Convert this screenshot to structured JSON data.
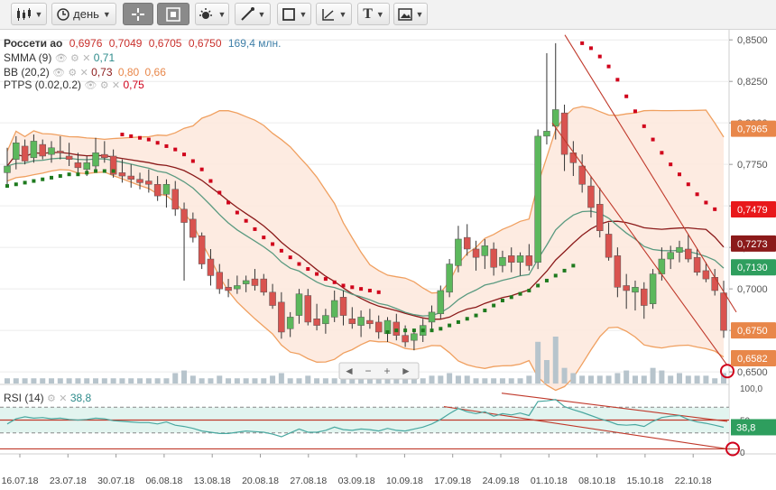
{
  "toolbar": {
    "chart_type_icon": "candlestick-icon",
    "period_label": "день",
    "buttons": [
      "crosshair-icon",
      "chart-area-icon",
      "indicators-icon",
      "draw-line-icon",
      "shapes-icon",
      "fibonacci-icon",
      "text-icon",
      "image-icon"
    ],
    "text_tool_label": "T"
  },
  "legend": {
    "ticker": "Россети ао",
    "open": "0,6976",
    "high": "0,7049",
    "low": "0,6705",
    "close": "0,6750",
    "volume": "169,4 млн.",
    "sma_label": "SMMA (9)",
    "sma_value": "0,71",
    "bb_label": "BB (20,2)",
    "bb_values": [
      "0,73",
      "0,80",
      "0,66"
    ],
    "ptps_label": "PTPS (0.02,0.2)",
    "ptps_value": "0,75",
    "rsi_label": "RSI (14)",
    "rsi_value": "38,8"
  },
  "colors": {
    "up": "#5cb85c",
    "down": "#d9534f",
    "bb_band": "#f0a060",
    "bb_mid": "#8b1a1a",
    "smma": "#5a9a80",
    "sar_above": "#d0021b",
    "sar_below": "#1e7a1e",
    "rsi": "#4aa8a0",
    "trendline": "#c0392b"
  },
  "chart_data": {
    "type": "candlestick",
    "price_axis": {
      "ticks": [
        "0,6500",
        "0,6750",
        "0,7000",
        "0,7250",
        "0,7500",
        "0,7750",
        "0,8000",
        "0,8250",
        "0,8500"
      ],
      "ylim": [
        0.643,
        0.855
      ]
    },
    "price_markers": [
      {
        "label": "0,7965",
        "value": 0.7965,
        "color": "#e8874a"
      },
      {
        "label": "0,7479",
        "value": 0.7479,
        "color": "#e8181b"
      },
      {
        "label": "0,7273",
        "value": 0.7273,
        "color": "#8b1a1a"
      },
      {
        "label": "0,7130",
        "value": 0.713,
        "color": "#2e9e5e"
      },
      {
        "label": "0,6750",
        "value": 0.675,
        "color": "#e8874a"
      },
      {
        "label": "0,6582",
        "value": 0.6582,
        "color": "#e8874a"
      }
    ],
    "x_labels": [
      "16.07.18",
      "23.07.18",
      "30.07.18",
      "06.08.18",
      "13.08.18",
      "20.08.18",
      "27.08.18",
      "03.09.18",
      "10.09.18",
      "17.09.18",
      "24.09.18",
      "01.10.18",
      "08.10.18",
      "15.10.18",
      "22.10.18"
    ],
    "ohlc": [
      [
        0.77,
        0.785,
        0.763,
        0.774
      ],
      [
        0.778,
        0.792,
        0.772,
        0.788
      ],
      [
        0.786,
        0.79,
        0.775,
        0.777
      ],
      [
        0.779,
        0.793,
        0.776,
        0.789
      ],
      [
        0.787,
        0.79,
        0.778,
        0.78
      ],
      [
        0.781,
        0.789,
        0.776,
        0.785
      ],
      [
        0.783,
        0.792,
        0.778,
        0.782
      ],
      [
        0.78,
        0.788,
        0.774,
        0.778
      ],
      [
        0.776,
        0.782,
        0.77,
        0.773
      ],
      [
        0.772,
        0.78,
        0.768,
        0.776
      ],
      [
        0.774,
        0.791,
        0.772,
        0.782
      ],
      [
        0.781,
        0.789,
        0.776,
        0.779
      ],
      [
        0.78,
        0.784,
        0.767,
        0.769
      ],
      [
        0.77,
        0.778,
        0.764,
        0.768
      ],
      [
        0.768,
        0.775,
        0.761,
        0.766
      ],
      [
        0.766,
        0.77,
        0.76,
        0.764
      ],
      [
        0.765,
        0.772,
        0.758,
        0.763
      ],
      [
        0.763,
        0.768,
        0.753,
        0.756
      ],
      [
        0.757,
        0.766,
        0.749,
        0.763
      ],
      [
        0.76,
        0.765,
        0.744,
        0.748
      ],
      [
        0.748,
        0.752,
        0.705,
        0.74
      ],
      [
        0.742,
        0.746,
        0.728,
        0.731
      ],
      [
        0.732,
        0.734,
        0.712,
        0.715
      ],
      [
        0.718,
        0.724,
        0.702,
        0.708
      ],
      [
        0.71,
        0.715,
        0.697,
        0.7
      ],
      [
        0.701,
        0.706,
        0.695,
        0.699
      ],
      [
        0.7,
        0.708,
        0.697,
        0.702
      ],
      [
        0.703,
        0.708,
        0.698,
        0.705
      ],
      [
        0.706,
        0.712,
        0.699,
        0.702
      ],
      [
        0.706,
        0.709,
        0.696,
        0.698
      ],
      [
        0.698,
        0.703,
        0.688,
        0.69
      ],
      [
        0.692,
        0.698,
        0.67,
        0.674
      ],
      [
        0.676,
        0.686,
        0.671,
        0.683
      ],
      [
        0.684,
        0.7,
        0.679,
        0.697
      ],
      [
        0.696,
        0.7,
        0.678,
        0.68
      ],
      [
        0.682,
        0.691,
        0.675,
        0.678
      ],
      [
        0.679,
        0.688,
        0.673,
        0.684
      ],
      [
        0.683,
        0.699,
        0.68,
        0.693
      ],
      [
        0.695,
        0.699,
        0.678,
        0.684
      ],
      [
        0.682,
        0.689,
        0.676,
        0.679
      ],
      [
        0.678,
        0.687,
        0.671,
        0.683
      ],
      [
        0.681,
        0.688,
        0.676,
        0.679
      ],
      [
        0.68,
        0.684,
        0.67,
        0.674
      ],
      [
        0.673,
        0.683,
        0.668,
        0.681
      ],
      [
        0.68,
        0.685,
        0.669,
        0.672
      ],
      [
        0.672,
        0.678,
        0.665,
        0.668
      ],
      [
        0.669,
        0.676,
        0.663,
        0.673
      ],
      [
        0.672,
        0.682,
        0.668,
        0.678
      ],
      [
        0.68,
        0.69,
        0.676,
        0.686
      ],
      [
        0.685,
        0.702,
        0.682,
        0.699
      ],
      [
        0.698,
        0.718,
        0.695,
        0.715
      ],
      [
        0.714,
        0.738,
        0.71,
        0.73
      ],
      [
        0.731,
        0.739,
        0.72,
        0.724
      ],
      [
        0.724,
        0.729,
        0.711,
        0.719
      ],
      [
        0.72,
        0.73,
        0.712,
        0.726
      ],
      [
        0.724,
        0.728,
        0.708,
        0.713
      ],
      [
        0.714,
        0.723,
        0.71,
        0.719
      ],
      [
        0.72,
        0.725,
        0.71,
        0.716
      ],
      [
        0.716,
        0.722,
        0.708,
        0.72
      ],
      [
        0.72,
        0.727,
        0.711,
        0.714
      ],
      [
        0.716,
        0.796,
        0.712,
        0.792
      ],
      [
        0.792,
        0.842,
        0.787,
        0.795
      ],
      [
        0.798,
        0.848,
        0.79,
        0.808
      ],
      [
        0.806,
        0.811,
        0.771,
        0.781
      ],
      [
        0.782,
        0.789,
        0.768,
        0.776
      ],
      [
        0.774,
        0.781,
        0.758,
        0.763
      ],
      [
        0.762,
        0.768,
        0.743,
        0.749
      ],
      [
        0.751,
        0.761,
        0.731,
        0.735
      ],
      [
        0.733,
        0.74,
        0.717,
        0.719
      ],
      [
        0.72,
        0.725,
        0.695,
        0.701
      ],
      [
        0.702,
        0.709,
        0.688,
        0.699
      ],
      [
        0.698,
        0.705,
        0.687,
        0.701
      ],
      [
        0.7,
        0.704,
        0.682,
        0.69
      ],
      [
        0.691,
        0.712,
        0.688,
        0.709
      ],
      [
        0.709,
        0.725,
        0.705,
        0.718
      ],
      [
        0.718,
        0.726,
        0.712,
        0.722
      ],
      [
        0.722,
        0.729,
        0.716,
        0.725
      ],
      [
        0.724,
        0.733,
        0.716,
        0.718
      ],
      [
        0.719,
        0.724,
        0.708,
        0.71
      ],
      [
        0.711,
        0.716,
        0.704,
        0.706
      ],
      [
        0.707,
        0.712,
        0.696,
        0.699
      ],
      [
        0.6976,
        0.7049,
        0.6705,
        0.675
      ]
    ],
    "volume": [
      2,
      2,
      2,
      2,
      2,
      2,
      2,
      2,
      2,
      2,
      2,
      2,
      2,
      2,
      2,
      2,
      2,
      2,
      2,
      4,
      5,
      3,
      2,
      2,
      3,
      2,
      2,
      2,
      2,
      2,
      3,
      4,
      2,
      2,
      3,
      2,
      2,
      2,
      3,
      2,
      2,
      2,
      2,
      3,
      2,
      2,
      2,
      2,
      3,
      3,
      4,
      3,
      3,
      2,
      2,
      2,
      2,
      2,
      2,
      3,
      16,
      9,
      18,
      6,
      4,
      3,
      3,
      3,
      3,
      4,
      5,
      3,
      3,
      6,
      5,
      3,
      4,
      3,
      3,
      3,
      2,
      4
    ],
    "sar": [
      [
        "b",
        0.762
      ],
      [
        "b",
        0.763
      ],
      [
        "b",
        0.764
      ],
      [
        "b",
        0.765
      ],
      [
        "b",
        0.766
      ],
      [
        "b",
        0.767
      ],
      [
        "b",
        0.768
      ],
      [
        "b",
        0.769
      ],
      [
        "b",
        0.769
      ],
      [
        "b",
        0.77
      ],
      [
        "b",
        0.771
      ],
      [
        "b",
        0.771
      ],
      [
        "b",
        0.771
      ],
      [
        "a",
        0.793
      ],
      [
        "a",
        0.792
      ],
      [
        "a",
        0.791
      ],
      [
        "a",
        0.79
      ],
      [
        "a",
        0.788
      ],
      [
        "a",
        0.786
      ],
      [
        "a",
        0.784
      ],
      [
        "a",
        0.781
      ],
      [
        "a",
        0.777
      ],
      [
        "a",
        0.772
      ],
      [
        "a",
        0.765
      ],
      [
        "a",
        0.758
      ],
      [
        "a",
        0.752
      ],
      [
        "a",
        0.746
      ],
      [
        "a",
        0.741
      ],
      [
        "a",
        0.736
      ],
      [
        "a",
        0.731
      ],
      [
        "a",
        0.727
      ],
      [
        "a",
        0.723
      ],
      [
        "a",
        0.719
      ],
      [
        "a",
        0.715
      ],
      [
        "a",
        0.712
      ],
      [
        "a",
        0.709
      ],
      [
        "a",
        0.706
      ],
      [
        "a",
        0.704
      ],
      [
        "a",
        0.702
      ],
      [
        "a",
        0.701
      ],
      [
        "a",
        0.7
      ],
      [
        "a",
        0.699
      ],
      [
        "a",
        0.698
      ],
      [
        "b",
        0.674
      ],
      [
        "b",
        0.675
      ],
      [
        "b",
        0.675
      ],
      [
        "b",
        0.675
      ],
      [
        "b",
        0.675
      ],
      [
        "b",
        0.675
      ],
      [
        "b",
        0.676
      ],
      [
        "b",
        0.678
      ],
      [
        "b",
        0.68
      ],
      [
        "b",
        0.682
      ],
      [
        "b",
        0.684
      ],
      [
        "b",
        0.687
      ],
      [
        "b",
        0.69
      ],
      [
        "b",
        0.693
      ],
      [
        "b",
        0.695
      ],
      [
        "b",
        0.697
      ],
      [
        "b",
        0.699
      ],
      [
        "b",
        0.702
      ],
      [
        "b",
        0.705
      ],
      [
        "b",
        0.708
      ],
      [
        "b",
        0.711
      ],
      [
        "b",
        0.714
      ],
      [
        "a",
        0.848
      ],
      [
        "a",
        0.845
      ],
      [
        "a",
        0.84
      ],
      [
        "a",
        0.834
      ],
      [
        "a",
        0.826
      ],
      [
        "a",
        0.816
      ],
      [
        "a",
        0.807
      ],
      [
        "a",
        0.798
      ],
      [
        "a",
        0.79
      ],
      [
        "a",
        0.782
      ],
      [
        "a",
        0.775
      ],
      [
        "a",
        0.769
      ],
      [
        "a",
        0.763
      ],
      [
        "a",
        0.757
      ],
      [
        "a",
        0.752
      ],
      [
        "a",
        0.748
      ]
    ],
    "rsi": {
      "ylim": [
        0,
        100
      ],
      "ticks": [
        "0",
        "50",
        "100,0"
      ],
      "marker": {
        "label": "38,8",
        "value": 38.8
      },
      "values": [
        44,
        52,
        55,
        53,
        54,
        52,
        53,
        51,
        50,
        51,
        53,
        52,
        49,
        48,
        47,
        46,
        46,
        44,
        47,
        42,
        40,
        37,
        33,
        31,
        29,
        29,
        31,
        33,
        32,
        31,
        28,
        24,
        30,
        36,
        31,
        31,
        34,
        39,
        35,
        34,
        36,
        35,
        33,
        37,
        34,
        33,
        36,
        39,
        44,
        51,
        60,
        68,
        63,
        60,
        63,
        56,
        60,
        58,
        61,
        57,
        79,
        80,
        82,
        71,
        66,
        62,
        57,
        52,
        48,
        43,
        42,
        43,
        40,
        48,
        54,
        56,
        57,
        51,
        47,
        45,
        42,
        38.8
      ]
    },
    "title": "",
    "xlabel": "",
    "ylabel": ""
  }
}
